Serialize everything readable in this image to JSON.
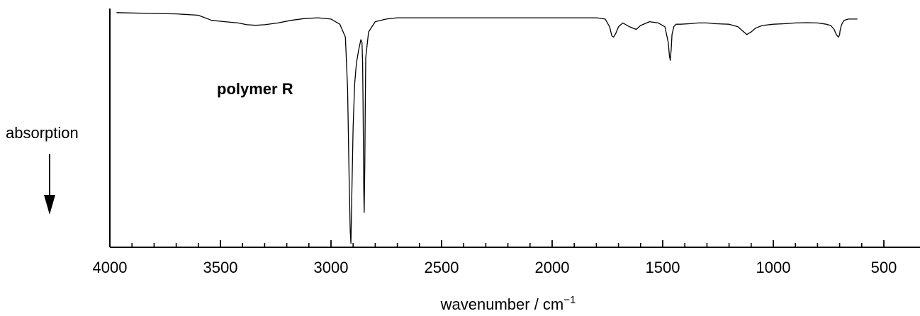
{
  "chart_data": {
    "type": "line",
    "title": "",
    "xlabel": "wavenumber / cm",
    "xlabel_superscript": "−1",
    "ylabel": "absorption",
    "xlim": [
      4000,
      450
    ],
    "x_reversed": true,
    "x_ticks": [
      4000,
      3500,
      3000,
      2500,
      2000,
      1500,
      1000,
      500
    ],
    "x_tick_labels": [
      "4000",
      "3500",
      "3000",
      "2500",
      "2000",
      "1500",
      "1000",
      "500"
    ],
    "minor_tick_step": 100,
    "ylim": [
      0,
      1
    ],
    "y_ticks_visible": false,
    "grid": false,
    "annotations": [
      {
        "text": "polymer R",
        "wavenumber": 3350,
        "absorbance": 0.38
      }
    ],
    "series": [
      {
        "x": [
          3970,
          3820,
          3700,
          3600,
          3540,
          3480,
          3420,
          3380,
          3340,
          3300,
          3240,
          3180,
          3120,
          3060,
          3000,
          2960,
          2935,
          2925,
          2918,
          2913,
          2910,
          2906,
          2900,
          2893,
          2885,
          2875,
          2865,
          2860,
          2857,
          2855,
          2852,
          2850,
          2847,
          2845,
          2843,
          2830,
          2800,
          2750,
          2700,
          2600,
          2500,
          2400,
          2300,
          2200,
          2100,
          2000,
          1900,
          1800,
          1760,
          1740,
          1730,
          1722,
          1712,
          1700,
          1680,
          1650,
          1620,
          1600,
          1560,
          1520,
          1490,
          1475,
          1470,
          1466,
          1462,
          1458,
          1450,
          1440,
          1420,
          1380,
          1340,
          1300,
          1260,
          1200,
          1160,
          1120,
          1100,
          1080,
          1050,
          1000,
          950,
          900,
          850,
          800,
          760,
          740,
          725,
          715,
          705,
          700,
          698,
          694,
          690,
          680,
          660,
          640,
          620
        ],
        "y": [
          0.005,
          0.008,
          0.01,
          0.015,
          0.035,
          0.04,
          0.045,
          0.052,
          0.054,
          0.052,
          0.045,
          0.035,
          0.028,
          0.025,
          0.03,
          0.05,
          0.1,
          0.3,
          0.65,
          0.85,
          0.9,
          0.72,
          0.45,
          0.28,
          0.2,
          0.15,
          0.11,
          0.12,
          0.2,
          0.35,
          0.68,
          0.78,
          0.6,
          0.35,
          0.18,
          0.08,
          0.04,
          0.03,
          0.025,
          0.025,
          0.025,
          0.025,
          0.025,
          0.025,
          0.025,
          0.025,
          0.025,
          0.025,
          0.03,
          0.06,
          0.095,
          0.1,
          0.085,
          0.06,
          0.045,
          0.06,
          0.07,
          0.055,
          0.04,
          0.045,
          0.06,
          0.12,
          0.17,
          0.19,
          0.15,
          0.09,
          0.06,
          0.05,
          0.05,
          0.048,
          0.045,
          0.045,
          0.048,
          0.05,
          0.06,
          0.09,
          0.08,
          0.065,
          0.055,
          0.05,
          0.048,
          0.045,
          0.044,
          0.045,
          0.05,
          0.055,
          0.07,
          0.09,
          0.1,
          0.09,
          0.075,
          0.06,
          0.05,
          0.035,
          0.03,
          0.03,
          0.03
        ]
      }
    ]
  }
}
